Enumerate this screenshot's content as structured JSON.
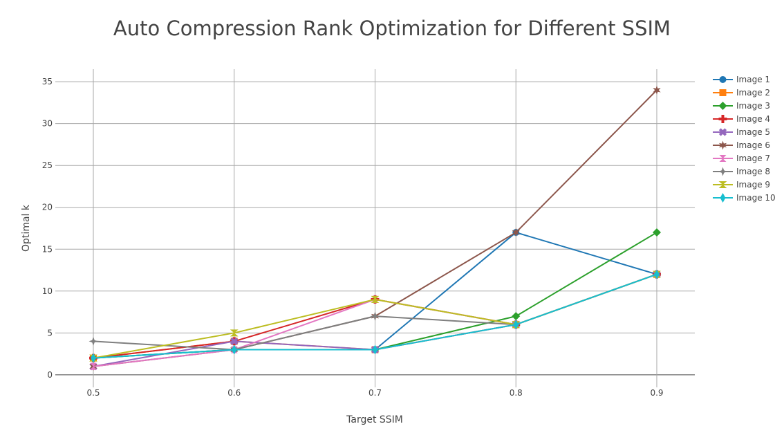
{
  "chart_data": {
    "type": "line",
    "title": "Auto Compression Rank Optimization for Different SSIM",
    "xlabel": "Target SSIM",
    "ylabel": "Optimal k",
    "x": [
      0.5,
      0.6,
      0.7,
      0.8,
      0.9
    ],
    "x_ticks": [
      0.5,
      0.6,
      0.7,
      0.8,
      0.9
    ],
    "x_tick_labels": [
      "0.5",
      "0.6",
      "0.7",
      "0.8",
      "0.9"
    ],
    "xlim": [
      0.473,
      0.927
    ],
    "y_ticks": [
      0,
      5,
      10,
      15,
      20,
      25,
      30,
      35
    ],
    "y_tick_labels": [
      "0",
      "5",
      "10",
      "15",
      "20",
      "25",
      "30",
      "35"
    ],
    "ylim": [
      -1.5,
      36.5
    ],
    "grid": true,
    "legend_position": "right",
    "series": [
      {
        "name": "Image 1",
        "color": "#1f77b4",
        "marker": "circle",
        "values": [
          2,
          3,
          3,
          17,
          12
        ]
      },
      {
        "name": "Image 2",
        "color": "#ff7f0e",
        "marker": "square",
        "values": [
          2,
          4,
          3,
          6,
          12
        ]
      },
      {
        "name": "Image 3",
        "color": "#2ca02c",
        "marker": "diamond",
        "values": [
          2,
          3,
          3,
          7,
          17
        ]
      },
      {
        "name": "Image 4",
        "color": "#d62728",
        "marker": "cross",
        "values": [
          2,
          4,
          9,
          6,
          12
        ]
      },
      {
        "name": "Image 5",
        "color": "#9467bd",
        "marker": "x",
        "values": [
          1,
          4,
          3,
          6,
          12
        ]
      },
      {
        "name": "Image 6",
        "color": "#8c564b",
        "marker": "star",
        "values": [
          1,
          3,
          7,
          17,
          34
        ]
      },
      {
        "name": "Image 7",
        "color": "#e377c2",
        "marker": "hourglass",
        "values": [
          1,
          3,
          9,
          6,
          12
        ]
      },
      {
        "name": "Image 8",
        "color": "#7f7f7f",
        "marker": "star-diamond",
        "values": [
          4,
          3,
          7,
          6,
          12
        ]
      },
      {
        "name": "Image 9",
        "color": "#bcbd22",
        "marker": "triangle-bowtie",
        "values": [
          2,
          5,
          9,
          6,
          12
        ]
      },
      {
        "name": "Image 10",
        "color": "#17becf",
        "marker": "thin-diamond",
        "values": [
          2,
          3,
          3,
          6,
          12
        ]
      }
    ]
  }
}
